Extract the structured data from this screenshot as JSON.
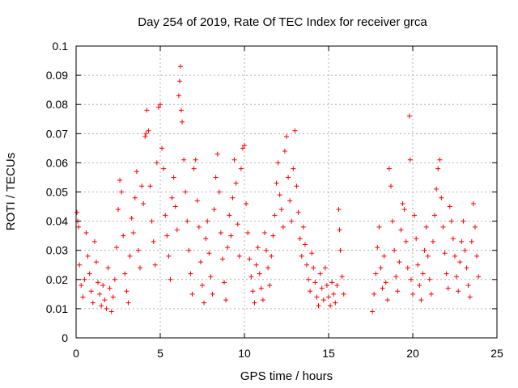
{
  "chart_data": {
    "type": "scatter",
    "title": "Day 254 of 2019, Rate Of TEC Index for receiver grca",
    "xlabel": "GPS time / hours",
    "ylabel": "ROTI / TECUs",
    "xlim": [
      0,
      25
    ],
    "ylim": [
      0,
      0.1
    ],
    "x_ticks": [
      "0",
      "5",
      "10",
      "15",
      "20",
      "25"
    ],
    "y_ticks": [
      "0",
      "0.01",
      "0.02",
      "0.03",
      "0.04",
      "0.05",
      "0.06",
      "0.07",
      "0.08",
      "0.09",
      "0.1"
    ],
    "grid": true,
    "legend": "none",
    "marker": "+",
    "marker_color": "#ff0000",
    "series": [
      {
        "points": [
          [
            0.05,
            0.043
          ],
          [
            0.1,
            0.04
          ],
          [
            0.15,
            0.038
          ],
          [
            0.2,
            0.025
          ],
          [
            0.3,
            0.018
          ],
          [
            0.4,
            0.014
          ],
          [
            0.5,
            0.02
          ],
          [
            0.6,
            0.036
          ],
          [
            0.7,
            0.028
          ],
          [
            0.8,
            0.022
          ],
          [
            0.9,
            0.016
          ],
          [
            1.0,
            0.012
          ],
          [
            1.1,
            0.033
          ],
          [
            1.2,
            0.026
          ],
          [
            1.3,
            0.019
          ],
          [
            1.4,
            0.015
          ],
          [
            1.5,
            0.011
          ],
          [
            1.6,
            0.018
          ],
          [
            1.7,
            0.013
          ],
          [
            1.8,
            0.01
          ],
          [
            1.9,
            0.024
          ],
          [
            2.0,
            0.017
          ],
          [
            2.1,
            0.009
          ],
          [
            2.2,
            0.014
          ],
          [
            2.3,
            0.02
          ],
          [
            2.4,
            0.031
          ],
          [
            2.5,
            0.044
          ],
          [
            2.6,
            0.054
          ],
          [
            2.7,
            0.05
          ],
          [
            2.8,
            0.035
          ],
          [
            2.9,
            0.022
          ],
          [
            3.0,
            0.016
          ],
          [
            3.1,
            0.012
          ],
          [
            3.2,
            0.028
          ],
          [
            3.3,
            0.041
          ],
          [
            3.4,
            0.036
          ],
          [
            3.5,
            0.048
          ],
          [
            3.6,
            0.057
          ],
          [
            3.7,
            0.03
          ],
          [
            3.8,
            0.024
          ],
          [
            3.9,
            0.052
          ],
          [
            4.0,
            0.046
          ],
          [
            4.1,
            0.069
          ],
          [
            4.15,
            0.07
          ],
          [
            4.2,
            0.078
          ],
          [
            4.3,
            0.071
          ],
          [
            4.4,
            0.052
          ],
          [
            4.5,
            0.04
          ],
          [
            4.6,
            0.033
          ],
          [
            4.7,
            0.025
          ],
          [
            4.8,
            0.06
          ],
          [
            4.9,
            0.079
          ],
          [
            5.0,
            0.08
          ],
          [
            5.1,
            0.065
          ],
          [
            5.2,
            0.058
          ],
          [
            5.3,
            0.042
          ],
          [
            5.4,
            0.035
          ],
          [
            5.5,
            0.028
          ],
          [
            5.6,
            0.02
          ],
          [
            5.7,
            0.048
          ],
          [
            5.8,
            0.055
          ],
          [
            5.9,
            0.045
          ],
          [
            6.0,
            0.037
          ],
          [
            6.1,
            0.083
          ],
          [
            6.15,
            0.088
          ],
          [
            6.2,
            0.093
          ],
          [
            6.25,
            0.078
          ],
          [
            6.3,
            0.074
          ],
          [
            6.4,
            0.061
          ],
          [
            6.5,
            0.05
          ],
          [
            6.6,
            0.04
          ],
          [
            6.7,
            0.03
          ],
          [
            6.8,
            0.022
          ],
          [
            6.9,
            0.015
          ],
          [
            7.0,
            0.058
          ],
          [
            7.1,
            0.061
          ],
          [
            7.2,
            0.047
          ],
          [
            7.3,
            0.038
          ],
          [
            7.4,
            0.026
          ],
          [
            7.5,
            0.018
          ],
          [
            7.6,
            0.012
          ],
          [
            7.7,
            0.034
          ],
          [
            7.8,
            0.04
          ],
          [
            7.9,
            0.029
          ],
          [
            8.0,
            0.021
          ],
          [
            8.1,
            0.015
          ],
          [
            8.2,
            0.044
          ],
          [
            8.3,
            0.055
          ],
          [
            8.4,
            0.063
          ],
          [
            8.5,
            0.05
          ],
          [
            8.6,
            0.036
          ],
          [
            8.7,
            0.027
          ],
          [
            8.8,
            0.019
          ],
          [
            8.9,
            0.013
          ],
          [
            9.0,
            0.031
          ],
          [
            9.1,
            0.042
          ],
          [
            9.2,
            0.035
          ],
          [
            9.3,
            0.048
          ],
          [
            9.4,
            0.061
          ],
          [
            9.5,
            0.053
          ],
          [
            9.6,
            0.039
          ],
          [
            9.7,
            0.028
          ],
          [
            9.8,
            0.058
          ],
          [
            9.9,
            0.065
          ],
          [
            10.0,
            0.066
          ],
          [
            10.1,
            0.046
          ],
          [
            10.2,
            0.036
          ],
          [
            10.3,
            0.027
          ],
          [
            10.4,
            0.021
          ],
          [
            10.5,
            0.016
          ],
          [
            10.6,
            0.012
          ],
          [
            10.7,
            0.025
          ],
          [
            10.8,
            0.031
          ],
          [
            10.9,
            0.022
          ],
          [
            11.0,
            0.017
          ],
          [
            11.1,
            0.013
          ],
          [
            11.2,
            0.036
          ],
          [
            11.3,
            0.03
          ],
          [
            11.4,
            0.024
          ],
          [
            11.5,
            0.018
          ],
          [
            11.6,
            0.028
          ],
          [
            11.7,
            0.035
          ],
          [
            11.8,
            0.042
          ],
          [
            11.9,
            0.053
          ],
          [
            12.0,
            0.06
          ],
          [
            12.1,
            0.049
          ],
          [
            12.2,
            0.044
          ],
          [
            12.3,
            0.038
          ],
          [
            12.4,
            0.064
          ],
          [
            12.5,
            0.069
          ],
          [
            12.6,
            0.055
          ],
          [
            12.7,
            0.047
          ],
          [
            12.8,
            0.04
          ],
          [
            12.9,
            0.058
          ],
          [
            13.0,
            0.071
          ],
          [
            13.1,
            0.052
          ],
          [
            13.2,
            0.043
          ],
          [
            13.3,
            0.034
          ],
          [
            13.4,
            0.028
          ],
          [
            13.5,
            0.038
          ],
          [
            13.6,
            0.032
          ],
          [
            13.7,
            0.025
          ],
          [
            13.8,
            0.02
          ],
          [
            13.9,
            0.016
          ],
          [
            14.0,
            0.029
          ],
          [
            14.1,
            0.024
          ],
          [
            14.2,
            0.019
          ],
          [
            14.3,
            0.014
          ],
          [
            14.4,
            0.011
          ],
          [
            14.5,
            0.022
          ],
          [
            14.6,
            0.017
          ],
          [
            14.7,
            0.013
          ],
          [
            14.8,
            0.024
          ],
          [
            14.9,
            0.018
          ],
          [
            15.0,
            0.014
          ],
          [
            15.1,
            0.011
          ],
          [
            15.2,
            0.019
          ],
          [
            15.3,
            0.015
          ],
          [
            15.4,
            0.012
          ],
          [
            15.5,
            0.018
          ],
          [
            15.6,
            0.044
          ],
          [
            15.65,
            0.037
          ],
          [
            15.7,
            0.03
          ],
          [
            15.8,
            0.021
          ],
          [
            15.9,
            0.015
          ],
          [
            17.6,
            0.009
          ],
          [
            17.7,
            0.015
          ],
          [
            17.8,
            0.022
          ],
          [
            17.9,
            0.031
          ],
          [
            18.0,
            0.038
          ],
          [
            18.1,
            0.024
          ],
          [
            18.2,
            0.017
          ],
          [
            18.3,
            0.028
          ],
          [
            18.4,
            0.019
          ],
          [
            18.5,
            0.013
          ],
          [
            18.6,
            0.058
          ],
          [
            18.7,
            0.052
          ],
          [
            18.8,
            0.04
          ],
          [
            18.9,
            0.03
          ],
          [
            19.0,
            0.021
          ],
          [
            19.1,
            0.016
          ],
          [
            19.2,
            0.026
          ],
          [
            19.3,
            0.037
          ],
          [
            19.4,
            0.046
          ],
          [
            19.5,
            0.044
          ],
          [
            19.6,
            0.033
          ],
          [
            19.7,
            0.024
          ],
          [
            19.8,
            0.076
          ],
          [
            19.85,
            0.061
          ],
          [
            19.9,
            0.02
          ],
          [
            20.0,
            0.015
          ],
          [
            20.1,
            0.042
          ],
          [
            20.2,
            0.034
          ],
          [
            20.3,
            0.025
          ],
          [
            20.4,
            0.018
          ],
          [
            20.5,
            0.013
          ],
          [
            20.6,
            0.022
          ],
          [
            20.7,
            0.03
          ],
          [
            20.8,
            0.038
          ],
          [
            20.9,
            0.028
          ],
          [
            21.0,
            0.02
          ],
          [
            21.1,
            0.015
          ],
          [
            21.2,
            0.033
          ],
          [
            21.3,
            0.042
          ],
          [
            21.4,
            0.051
          ],
          [
            21.5,
            0.058
          ],
          [
            21.6,
            0.061
          ],
          [
            21.7,
            0.048
          ],
          [
            21.8,
            0.038
          ],
          [
            21.9,
            0.029
          ],
          [
            22.0,
            0.022
          ],
          [
            22.1,
            0.017
          ],
          [
            22.2,
            0.045
          ],
          [
            22.3,
            0.04
          ],
          [
            22.4,
            0.034
          ],
          [
            22.5,
            0.028
          ],
          [
            22.6,
            0.021
          ],
          [
            22.7,
            0.016
          ],
          [
            22.8,
            0.026
          ],
          [
            22.9,
            0.033
          ],
          [
            23.0,
            0.04
          ],
          [
            23.1,
            0.03
          ],
          [
            23.2,
            0.024
          ],
          [
            23.3,
            0.018
          ],
          [
            23.4,
            0.014
          ],
          [
            23.5,
            0.033
          ],
          [
            23.6,
            0.046
          ],
          [
            23.7,
            0.038
          ],
          [
            23.8,
            0.028
          ],
          [
            23.9,
            0.021
          ]
        ]
      }
    ]
  }
}
